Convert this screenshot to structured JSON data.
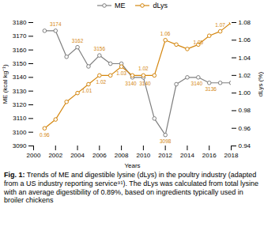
{
  "chart_data": {
    "type": "line",
    "x": [
      2001,
      2002,
      2003,
      2004,
      2005,
      2006,
      2007,
      2008,
      2009,
      2010,
      2011,
      2012,
      2013,
      2014,
      2015,
      2016,
      2017,
      2018
    ],
    "series": [
      {
        "name": "ME",
        "color": "#7f7f7f",
        "marker": "circle",
        "values": [
          3174,
          3174,
          3155,
          3162,
          3148,
          3156,
          3150,
          3150,
          3140,
          3140,
          3110,
          3098,
          3135,
          3140,
          3140,
          3136,
          3136,
          3136
        ]
      },
      {
        "name": "dLys",
        "color": "#d4860e",
        "marker": "circle",
        "axis": "y2",
        "values": [
          0.96,
          0.97,
          0.99,
          1.0,
          1.01,
          1.02,
          1.02,
          1.03,
          1.02,
          1.02,
          1.02,
          1.06,
          1.055,
          1.05,
          1.055,
          1.065,
          1.07,
          1.08
        ]
      }
    ],
    "xlabel": "Years",
    "ylabel": "ME (kcal kg⁻¹)",
    "y2label": "dLys (%)",
    "xlim": [
      2000,
      2018
    ],
    "xticks": [
      2000,
      2002,
      2004,
      2006,
      2008,
      2010,
      2012,
      2014,
      2016,
      2018
    ],
    "ylim": [
      3090,
      3180
    ],
    "yticks": [
      3090,
      3100,
      3110,
      3120,
      3130,
      3140,
      3150,
      3160,
      3170,
      3180
    ],
    "y2lim": [
      0.94,
      1.08
    ],
    "y2ticks": [
      0.94,
      0.96,
      0.98,
      {
        "value": 1.0,
        "label": "1.00"
      },
      1.02,
      1.04,
      1.06,
      1.08
    ],
    "legend": "top",
    "annotations": [
      {
        "text": "3174",
        "x": 2002,
        "y": 3174,
        "color": "#d4860e"
      },
      {
        "text": "3162",
        "x": 2004,
        "y": 3162,
        "color": "#d4860e"
      },
      {
        "text": "3156",
        "x": 2006,
        "y": 3156,
        "color": "#d4860e"
      },
      {
        "text": "3140",
        "x": 2009,
        "y": 3140,
        "color": "#d4860e"
      },
      {
        "text": "3140",
        "x": 2010,
        "y": 3140,
        "color": "#d4860e"
      },
      {
        "text": "3098",
        "x": 2012,
        "y": 3098,
        "color": "#d4860e"
      },
      {
        "text": "3140",
        "x": 2015,
        "y": 3140,
        "color": "#d4860e"
      },
      {
        "text": "3136",
        "x": 2016,
        "y": 3136,
        "color": "#d4860e"
      },
      {
        "text": "0.96",
        "x": 2001,
        "y": 0.96,
        "axis": "y2",
        "color": "#d4860e"
      },
      {
        "text": "1.01",
        "x": 2005,
        "y": 1.01,
        "axis": "y2",
        "color": "#d4860e"
      },
      {
        "text": "1.02",
        "x": 2006,
        "y": 1.02,
        "axis": "y2",
        "color": "#d4860e"
      },
      {
        "text": "1.03",
        "x": 2008,
        "y": 1.03,
        "axis": "y2",
        "color": "#d4860e"
      },
      {
        "text": "1.02",
        "x": 2010,
        "y": 1.02,
        "axis": "y2",
        "color": "#d4860e"
      },
      {
        "text": "1.06",
        "x": 2012,
        "y": 1.06,
        "axis": "y2",
        "color": "#d4860e"
      },
      {
        "text": "1.05",
        "x": 2015,
        "y": 1.05,
        "axis": "y2",
        "color": "#d4860e"
      },
      {
        "text": "1.07",
        "x": 2017,
        "y": 1.07,
        "axis": "y2",
        "color": "#d4860e"
      }
    ],
    "caption_label": "Fig. 1:",
    "caption": "Trends of ME and digestible lysine (dLys) in the poultry industry (adapted from a US industry reporting service⁹¹). The dLys was calculated from total lysine with an average digestibility of 0.89%, based on ingredients typically used in broiler chickens"
  }
}
